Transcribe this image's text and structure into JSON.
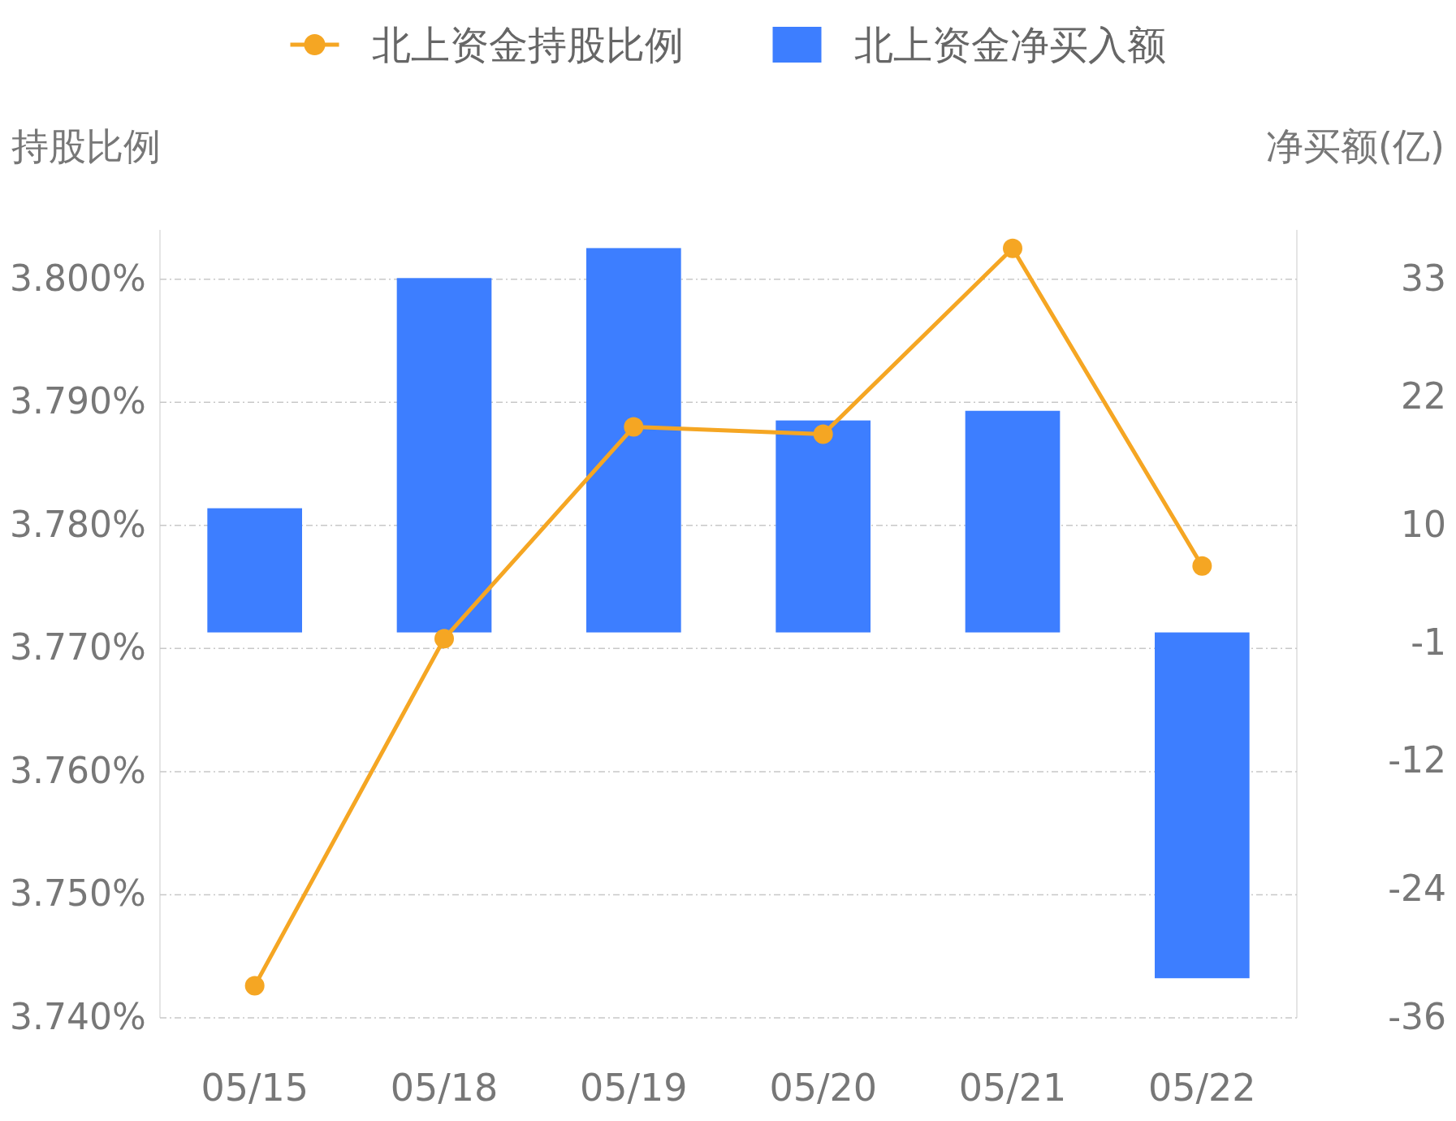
{
  "chart_data": {
    "type": "bar",
    "categories": [
      "05/15",
      "05/18",
      "05/19",
      "05/20",
      "05/21",
      "05/22"
    ],
    "series": [
      {
        "name": "北上资金持股比例",
        "type": "line",
        "color": "#f5a623",
        "values": [
          3.7426,
          3.7708,
          3.788,
          3.7874,
          3.8025,
          3.7767
        ]
      },
      {
        "name": "北上资金净买入额",
        "axis": "y2",
        "color": "#3d7eff",
        "values": [
          11.6,
          33.1,
          35.9,
          19.8,
          20.7,
          -32.3
        ]
      }
    ],
    "ylabel": "持股比例",
    "y2label": "净买额(亿)",
    "ylim": [
      3.74,
      3.804
    ],
    "yticks": [
      {
        "value": 3.74,
        "label": "3.740%"
      },
      {
        "value": 3.75,
        "label": "3.750%"
      },
      {
        "value": 3.76,
        "label": "3.760%"
      },
      {
        "value": 3.77,
        "label": "3.770%"
      },
      {
        "value": 3.78,
        "label": "3.780%"
      },
      {
        "value": 3.79,
        "label": "3.790%"
      },
      {
        "value": 3.8,
        "label": "3.800%"
      }
    ],
    "y2lim": [
      -36,
      37.6
    ],
    "y2ticks": [
      -36,
      -24,
      -12,
      -1,
      10,
      22,
      33
    ],
    "grid": "y",
    "legend": "top",
    "marker": "circle"
  }
}
